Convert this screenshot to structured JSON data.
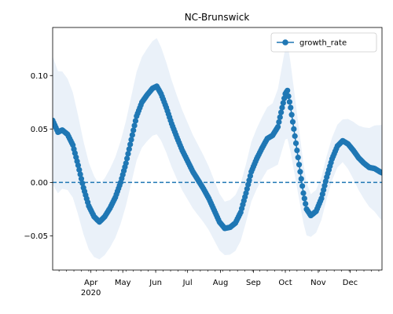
{
  "chart_data": {
    "type": "line",
    "title": "NC-Brunswick",
    "xlabel": "",
    "ylabel": "",
    "x_range": [
      "2020-02-25",
      "2020-12-31"
    ],
    "ylim": [
      -0.082,
      0.145
    ],
    "y_ticks": [
      -0.05,
      0.0,
      0.05,
      0.1
    ],
    "y_tick_labels": [
      "−0.05",
      "0.00",
      "0.05",
      "0.10"
    ],
    "x_ticks": [
      {
        "date": "2020-04-01",
        "label": "Apr",
        "sublabel": "2020"
      },
      {
        "date": "2020-05-01",
        "label": "May",
        "sublabel": ""
      },
      {
        "date": "2020-06-01",
        "label": "Jun",
        "sublabel": ""
      },
      {
        "date": "2020-07-01",
        "label": "Jul",
        "sublabel": ""
      },
      {
        "date": "2020-08-01",
        "label": "Aug",
        "sublabel": ""
      },
      {
        "date": "2020-09-01",
        "label": "Sep",
        "sublabel": ""
      },
      {
        "date": "2020-10-01",
        "label": "Oct",
        "sublabel": ""
      },
      {
        "date": "2020-11-01",
        "label": "Nov",
        "sublabel": ""
      },
      {
        "date": "2020-12-01",
        "label": "Dec",
        "sublabel": ""
      }
    ],
    "reference_line": {
      "y": 0.0,
      "style": "dashed"
    },
    "legend": {
      "position": "top-right"
    },
    "series": [
      {
        "name": "growth_rate",
        "color": "#1f77b4",
        "band_color": "#dce8f5",
        "marker": "circle",
        "key_points": [
          {
            "date": "2020-02-25",
            "y": 0.058
          },
          {
            "date": "2020-03-01",
            "y": 0.047
          },
          {
            "date": "2020-03-05",
            "y": 0.049
          },
          {
            "date": "2020-03-10",
            "y": 0.045
          },
          {
            "date": "2020-03-15",
            "y": 0.035
          },
          {
            "date": "2020-03-20",
            "y": 0.016
          },
          {
            "date": "2020-03-25",
            "y": -0.005
          },
          {
            "date": "2020-03-30",
            "y": -0.022
          },
          {
            "date": "2020-04-04",
            "y": -0.032
          },
          {
            "date": "2020-04-09",
            "y": -0.037
          },
          {
            "date": "2020-04-14",
            "y": -0.032
          },
          {
            "date": "2020-04-19",
            "y": -0.024
          },
          {
            "date": "2020-04-24",
            "y": -0.014
          },
          {
            "date": "2020-04-29",
            "y": 0.0
          },
          {
            "date": "2020-05-04",
            "y": 0.018
          },
          {
            "date": "2020-05-09",
            "y": 0.04
          },
          {
            "date": "2020-05-14",
            "y": 0.062
          },
          {
            "date": "2020-05-19",
            "y": 0.075
          },
          {
            "date": "2020-05-24",
            "y": 0.082
          },
          {
            "date": "2020-05-29",
            "y": 0.088
          },
          {
            "date": "2020-06-02",
            "y": 0.09
          },
          {
            "date": "2020-06-06",
            "y": 0.083
          },
          {
            "date": "2020-06-11",
            "y": 0.07
          },
          {
            "date": "2020-06-16",
            "y": 0.055
          },
          {
            "date": "2020-06-21",
            "y": 0.042
          },
          {
            "date": "2020-06-26",
            "y": 0.03
          },
          {
            "date": "2020-07-01",
            "y": 0.02
          },
          {
            "date": "2020-07-06",
            "y": 0.01
          },
          {
            "date": "2020-07-11",
            "y": 0.002
          },
          {
            "date": "2020-07-16",
            "y": -0.006
          },
          {
            "date": "2020-07-21",
            "y": -0.015
          },
          {
            "date": "2020-07-26",
            "y": -0.026
          },
          {
            "date": "2020-07-31",
            "y": -0.037
          },
          {
            "date": "2020-08-05",
            "y": -0.043
          },
          {
            "date": "2020-08-10",
            "y": -0.042
          },
          {
            "date": "2020-08-15",
            "y": -0.038
          },
          {
            "date": "2020-08-20",
            "y": -0.028
          },
          {
            "date": "2020-08-25",
            "y": -0.01
          },
          {
            "date": "2020-08-30",
            "y": 0.01
          },
          {
            "date": "2020-09-04",
            "y": 0.022
          },
          {
            "date": "2020-09-09",
            "y": 0.032
          },
          {
            "date": "2020-09-14",
            "y": 0.041
          },
          {
            "date": "2020-09-19",
            "y": 0.044
          },
          {
            "date": "2020-09-24",
            "y": 0.052
          },
          {
            "date": "2020-09-28",
            "y": 0.07
          },
          {
            "date": "2020-10-01",
            "y": 0.083
          },
          {
            "date": "2020-10-03",
            "y": 0.086
          },
          {
            "date": "2020-10-06",
            "y": 0.07
          },
          {
            "date": "2020-10-09",
            "y": 0.05
          },
          {
            "date": "2020-10-12",
            "y": 0.03
          },
          {
            "date": "2020-10-15",
            "y": 0.01
          },
          {
            "date": "2020-10-18",
            "y": -0.01
          },
          {
            "date": "2020-10-21",
            "y": -0.025
          },
          {
            "date": "2020-10-25",
            "y": -0.031
          },
          {
            "date": "2020-10-30",
            "y": -0.027
          },
          {
            "date": "2020-11-04",
            "y": -0.015
          },
          {
            "date": "2020-11-09",
            "y": 0.005
          },
          {
            "date": "2020-11-14",
            "y": 0.022
          },
          {
            "date": "2020-11-19",
            "y": 0.034
          },
          {
            "date": "2020-11-24",
            "y": 0.039
          },
          {
            "date": "2020-11-29",
            "y": 0.036
          },
          {
            "date": "2020-12-04",
            "y": 0.03
          },
          {
            "date": "2020-12-09",
            "y": 0.023
          },
          {
            "date": "2020-12-14",
            "y": 0.018
          },
          {
            "date": "2020-12-19",
            "y": 0.014
          },
          {
            "date": "2020-12-24",
            "y": 0.013
          },
          {
            "date": "2020-12-29",
            "y": 0.01
          },
          {
            "date": "2020-12-31",
            "y": 0.009
          }
        ],
        "band_halfwidth": [
          {
            "date": "2020-02-25",
            "w": 0.06
          },
          {
            "date": "2020-04-09",
            "w": 0.035
          },
          {
            "date": "2020-06-02",
            "w": 0.045
          },
          {
            "date": "2020-08-05",
            "w": 0.025
          },
          {
            "date": "2020-09-19",
            "w": 0.03
          },
          {
            "date": "2020-10-03",
            "w": 0.045
          },
          {
            "date": "2020-10-25",
            "w": 0.02
          },
          {
            "date": "2020-11-24",
            "w": 0.02
          },
          {
            "date": "2020-12-31",
            "w": 0.045
          }
        ]
      }
    ]
  }
}
